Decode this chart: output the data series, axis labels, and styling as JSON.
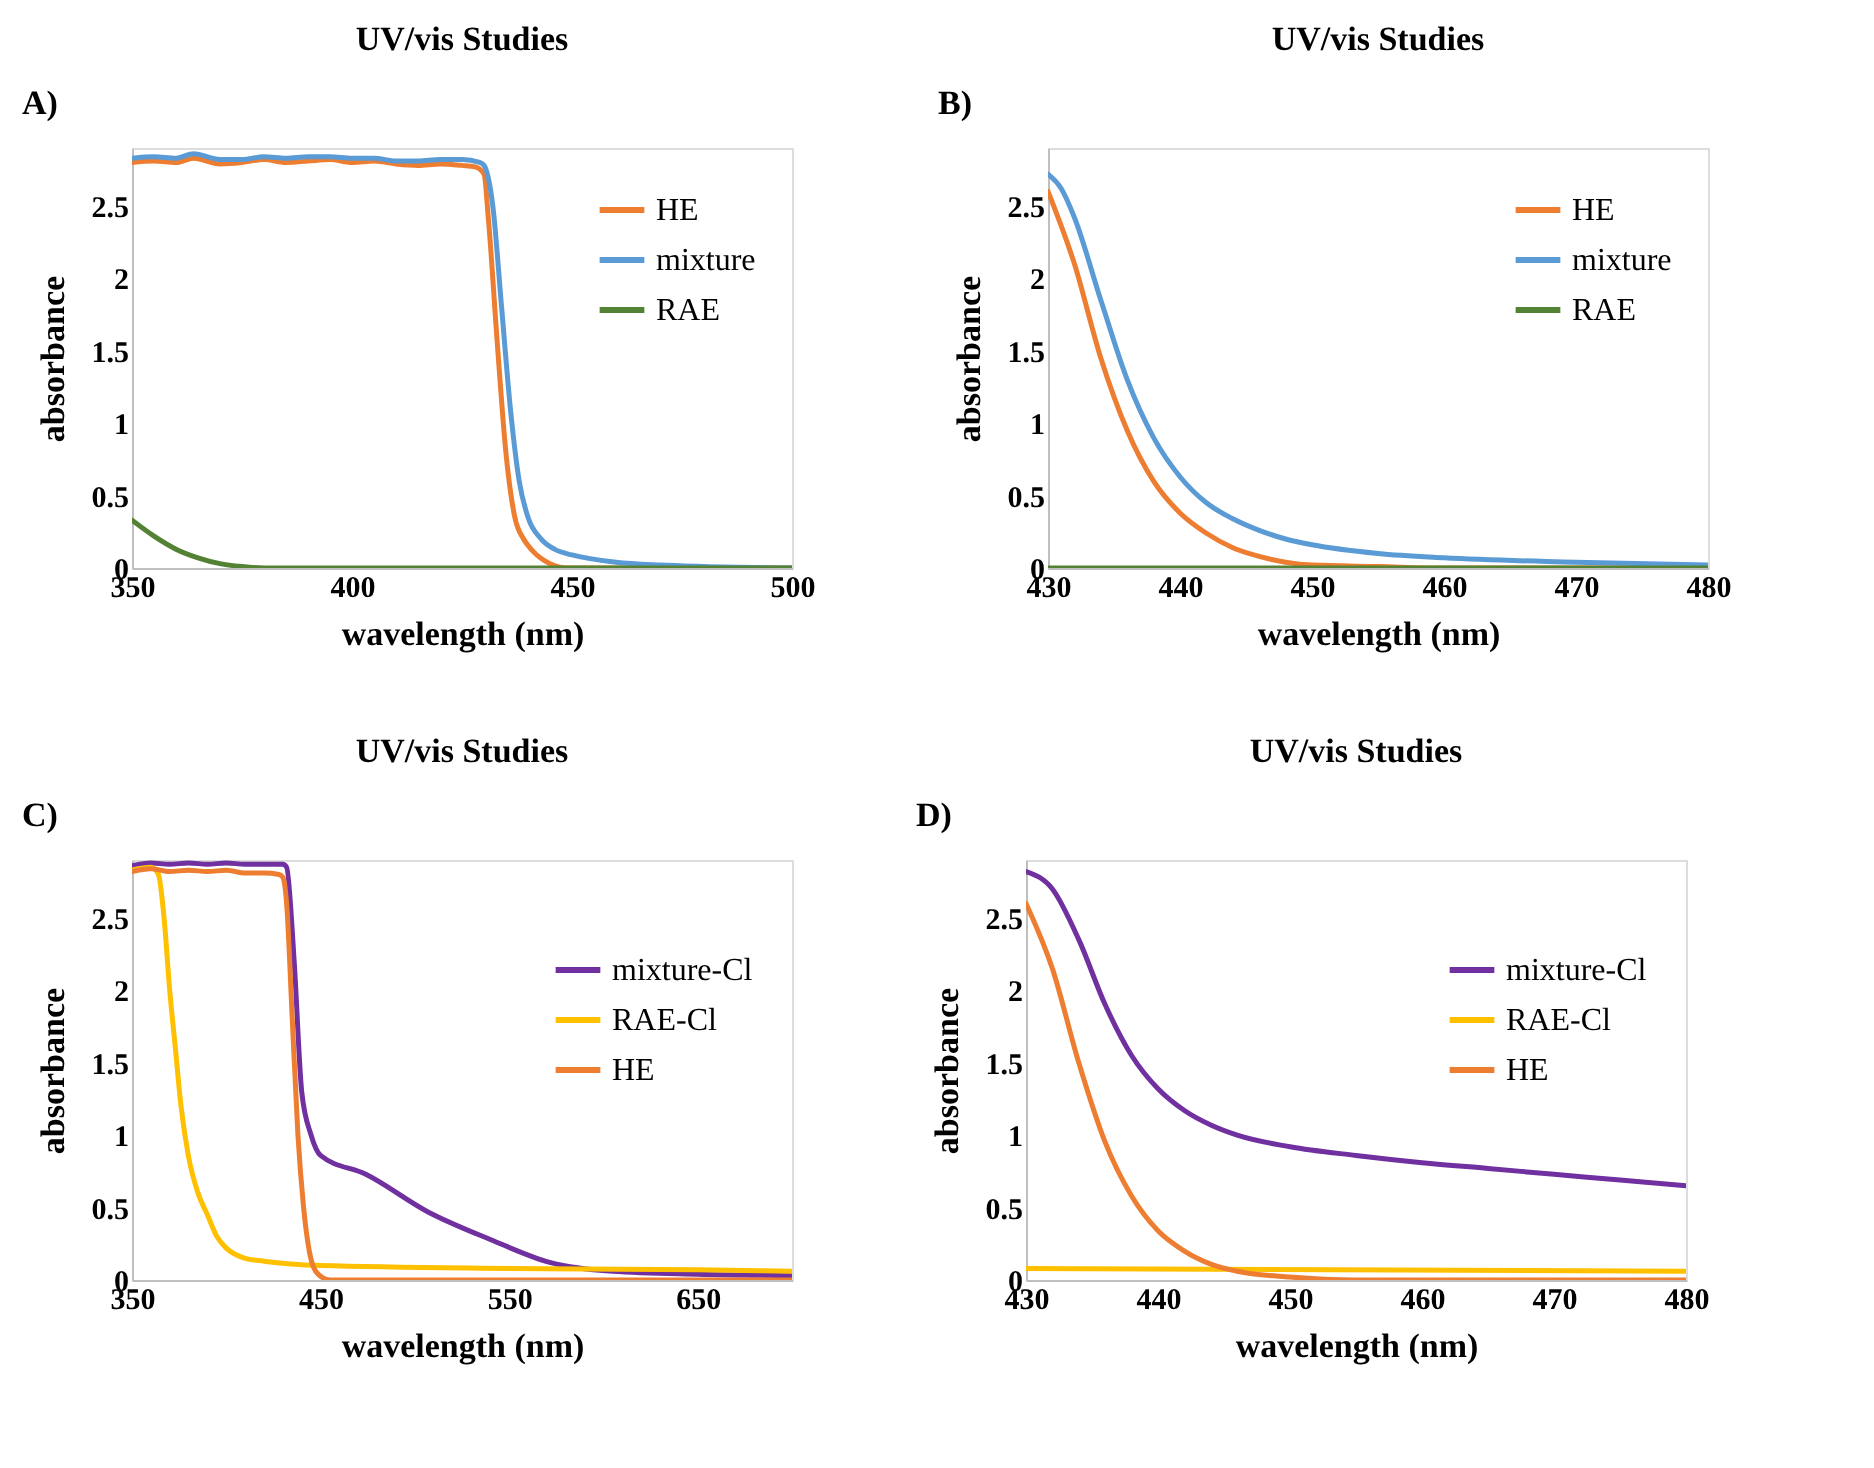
{
  "chart_data": [
    {
      "type": "line",
      "title": "UV/vis Studies",
      "xlabel": "wavelength (nm)",
      "ylabel": "absorbance",
      "annotations": [
        "A)"
      ],
      "xlim": [
        350,
        500
      ],
      "xticks": [
        350,
        400,
        450,
        500
      ],
      "ylim": [
        0,
        2.9
      ],
      "yticks": [
        0,
        0.5,
        1,
        1.5,
        2,
        2.5
      ],
      "legend": "top right",
      "series": [
        {
          "name": "HE",
          "color": "#ed7d31",
          "x": [
            350,
            355,
            360,
            364,
            370,
            375,
            380,
            385,
            390,
            395,
            400,
            405,
            410,
            415,
            420,
            425,
            428,
            430,
            431,
            433,
            435,
            437,
            439,
            441,
            445,
            449,
            500
          ],
          "values": [
            2.8,
            2.81,
            2.8,
            2.83,
            2.79,
            2.8,
            2.82,
            2.8,
            2.81,
            2.82,
            2.8,
            2.81,
            2.79,
            2.78,
            2.79,
            2.78,
            2.77,
            2.72,
            2.41,
            1.56,
            0.79,
            0.35,
            0.2,
            0.12,
            0.03,
            0,
            0
          ]
        },
        {
          "name": "mixture",
          "color": "#5b9bd5",
          "x": [
            350,
            355,
            360,
            364,
            370,
            375,
            380,
            385,
            390,
            395,
            400,
            405,
            410,
            415,
            420,
            425,
            429,
            430,
            432,
            434,
            436,
            438,
            440,
            443,
            446,
            450,
            460,
            470,
            480,
            500
          ],
          "values": [
            2.83,
            2.84,
            2.83,
            2.86,
            2.82,
            2.82,
            2.84,
            2.83,
            2.84,
            2.84,
            2.83,
            2.83,
            2.81,
            2.81,
            2.82,
            2.82,
            2.8,
            2.78,
            2.5,
            1.8,
            1.1,
            0.6,
            0.35,
            0.2,
            0.13,
            0.09,
            0.04,
            0.02,
            0.01,
            0
          ]
        },
        {
          "name": "RAE",
          "color": "#548235",
          "x": [
            350,
            355,
            360,
            365,
            370,
            375,
            380,
            500
          ],
          "values": [
            0.33,
            0.22,
            0.13,
            0.07,
            0.03,
            0.01,
            0,
            0
          ]
        }
      ]
    },
    {
      "type": "line",
      "title": "UV/vis Studies",
      "xlabel": "wavelength (nm)",
      "ylabel": "absorbance",
      "annotations": [
        "B)"
      ],
      "xlim": [
        430,
        480
      ],
      "xticks": [
        430,
        440,
        450,
        460,
        470,
        480
      ],
      "ylim": [
        0,
        2.9
      ],
      "yticks": [
        0,
        0.5,
        1,
        1.5,
        2,
        2.5
      ],
      "legend": "top right",
      "series": [
        {
          "name": "HE",
          "color": "#ed7d31",
          "x": [
            430,
            432,
            434,
            436,
            438,
            440,
            442,
            444,
            446,
            448,
            450,
            455,
            460,
            480
          ],
          "values": [
            2.6,
            2.1,
            1.45,
            0.95,
            0.6,
            0.38,
            0.24,
            0.14,
            0.08,
            0.04,
            0.02,
            0.01,
            0,
            0
          ]
        },
        {
          "name": "mixture",
          "color": "#5b9bd5",
          "x": [
            430,
            431,
            432,
            434,
            436,
            438,
            440,
            442,
            444,
            446,
            448,
            450,
            455,
            460,
            470,
            480
          ],
          "values": [
            2.72,
            2.62,
            2.42,
            1.85,
            1.3,
            0.9,
            0.63,
            0.45,
            0.34,
            0.26,
            0.2,
            0.16,
            0.1,
            0.07,
            0.04,
            0.02
          ]
        },
        {
          "name": "RAE",
          "color": "#548235",
          "x": [
            430,
            480
          ],
          "values": [
            0,
            0
          ]
        }
      ]
    },
    {
      "type": "line",
      "title": "UV/vis Studies",
      "xlabel": "wavelength (nm)",
      "ylabel": "absorbance",
      "annotations": [
        "C)"
      ],
      "xlim": [
        350,
        700
      ],
      "xticks": [
        350,
        450,
        550,
        650
      ],
      "ylim": [
        0,
        2.9
      ],
      "yticks": [
        0,
        0.5,
        1,
        1.5,
        2,
        2.5
      ],
      "legend": "right",
      "series": [
        {
          "name": "mixture-Cl",
          "color": "#7030a0",
          "x": [
            350,
            360,
            370,
            380,
            390,
            400,
            410,
            420,
            430,
            432,
            436,
            440,
            445,
            450,
            474,
            507,
            540,
            572,
            605,
            650,
            700
          ],
          "values": [
            2.86,
            2.88,
            2.87,
            2.88,
            2.87,
            2.88,
            2.87,
            2.87,
            2.87,
            2.85,
            2.2,
            1.3,
            1.0,
            0.86,
            0.73,
            0.47,
            0.28,
            0.12,
            0.06,
            0.04,
            0.03
          ]
        },
        {
          "name": "RAE-Cl",
          "color": "#ffc000",
          "x": [
            350,
            360,
            364,
            367,
            370,
            373,
            376,
            380,
            385,
            390,
            395,
            400,
            410,
            420,
            450,
            550,
            650,
            700
          ],
          "values": [
            2.83,
            2.85,
            2.8,
            2.5,
            2.0,
            1.6,
            1.2,
            0.85,
            0.6,
            0.45,
            0.3,
            0.22,
            0.15,
            0.13,
            0.1,
            0.08,
            0.07,
            0.06
          ]
        },
        {
          "name": "HE",
          "color": "#ed7d31",
          "x": [
            350,
            360,
            370,
            380,
            390,
            400,
            410,
            420,
            428,
            430,
            432,
            435,
            438,
            441,
            444,
            448,
            455,
            700
          ],
          "values": [
            2.82,
            2.84,
            2.82,
            2.83,
            2.82,
            2.83,
            2.81,
            2.81,
            2.8,
            2.78,
            2.6,
            1.8,
            1.0,
            0.5,
            0.2,
            0.05,
            0,
            0
          ]
        }
      ]
    },
    {
      "type": "line",
      "title": "UV/vis Studies",
      "xlabel": "wavelength (nm)",
      "ylabel": "absorbance",
      "annotations": [
        "D)"
      ],
      "xlim": [
        430,
        480
      ],
      "xticks": [
        430,
        440,
        450,
        460,
        470,
        480
      ],
      "ylim": [
        0,
        2.9
      ],
      "yticks": [
        0,
        0.5,
        1,
        1.5,
        2,
        2.5
      ],
      "legend": "right",
      "series": [
        {
          "name": "mixture-Cl",
          "color": "#7030a0",
          "x": [
            430,
            432,
            434,
            436,
            438,
            440,
            442,
            444,
            446,
            450,
            455,
            460,
            465,
            470,
            475,
            480
          ],
          "values": [
            2.82,
            2.7,
            2.35,
            1.9,
            1.55,
            1.32,
            1.17,
            1.07,
            1.0,
            0.92,
            0.86,
            0.81,
            0.77,
            0.73,
            0.69,
            0.65
          ]
        },
        {
          "name": "RAE-Cl",
          "color": "#ffc000",
          "x": [
            430,
            480
          ],
          "values": [
            0.08,
            0.06
          ]
        },
        {
          "name": "HE",
          "color": "#ed7d31",
          "x": [
            430,
            432,
            434,
            436,
            438,
            440,
            442,
            444,
            446,
            450,
            455,
            480
          ],
          "values": [
            2.6,
            2.15,
            1.5,
            0.95,
            0.58,
            0.34,
            0.2,
            0.11,
            0.06,
            0.02,
            0,
            0
          ]
        }
      ]
    }
  ]
}
